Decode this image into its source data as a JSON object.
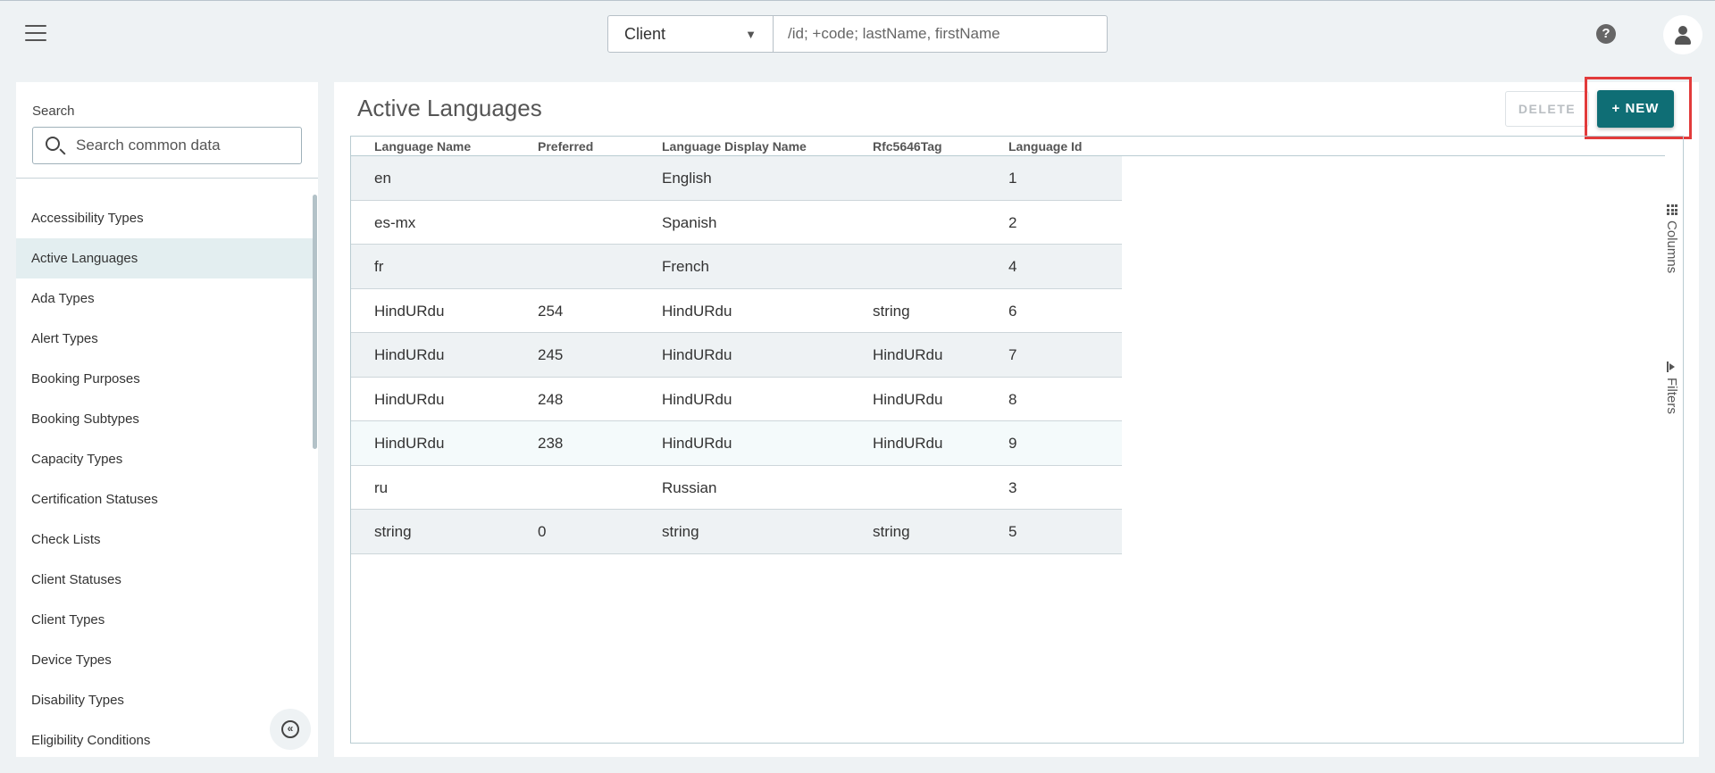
{
  "topbar": {
    "entity_select": "Client",
    "query_placeholder": "/id; +code; lastName, firstName",
    "help_label": "?"
  },
  "sidebar": {
    "search_label": "Search",
    "search_placeholder": "Search common data",
    "items": [
      {
        "label": "Accessibility Types"
      },
      {
        "label": "Active Languages",
        "active": true
      },
      {
        "label": "Ada Types"
      },
      {
        "label": "Alert Types"
      },
      {
        "label": "Booking Purposes"
      },
      {
        "label": "Booking Subtypes"
      },
      {
        "label": "Capacity Types"
      },
      {
        "label": "Certification Statuses"
      },
      {
        "label": "Check Lists"
      },
      {
        "label": "Client Statuses"
      },
      {
        "label": "Client Types"
      },
      {
        "label": "Device Types"
      },
      {
        "label": "Disability Types"
      },
      {
        "label": "Eligibility Conditions"
      }
    ],
    "collapse_glyph": "«"
  },
  "main": {
    "title": "Active Languages",
    "delete_label": "DELETE",
    "new_label": "+ NEW",
    "columns_label": "Columns",
    "filters_label": "Filters"
  },
  "table": {
    "columns": [
      "Language Name",
      "Preferred",
      "Language Display Name",
      "Rfc5646Tag",
      "Language Id"
    ],
    "rows": [
      [
        "en",
        "",
        "English",
        "",
        "1"
      ],
      [
        "es-mx",
        "",
        "Spanish",
        "",
        "2"
      ],
      [
        "fr",
        "",
        "French",
        "",
        "4"
      ],
      [
        "HindURdu",
        "254",
        "HindURdu",
        "string",
        "6"
      ],
      [
        "HindURdu",
        "245",
        "HindURdu",
        "HindURdu",
        "7"
      ],
      [
        "HindURdu",
        "248",
        "HindURdu",
        "HindURdu",
        "8"
      ],
      [
        "HindURdu",
        "238",
        "HindURdu",
        "HindURdu",
        "9"
      ],
      [
        "ru",
        "",
        "Russian",
        "",
        "3"
      ],
      [
        "string",
        "0",
        "string",
        "string",
        "5"
      ]
    ]
  },
  "colors": {
    "accent": "#0f6e75",
    "highlight_border": "#e23b3b",
    "background": "#eef2f4"
  }
}
